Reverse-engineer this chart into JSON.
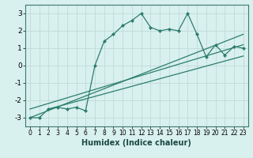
{
  "xlabel": "Humidex (Indice chaleur)",
  "ylabel": "",
  "bg_color": "#d8f0ee",
  "line_color": "#2d7d6e",
  "grid_color": "#c0dbd8",
  "xlim": [
    -0.5,
    23.5
  ],
  "ylim": [
    -3.5,
    3.5
  ],
  "xticks": [
    0,
    1,
    2,
    3,
    4,
    5,
    6,
    7,
    8,
    9,
    10,
    11,
    12,
    13,
    14,
    15,
    16,
    17,
    18,
    19,
    20,
    21,
    22,
    23
  ],
  "yticks": [
    -3,
    -2,
    -1,
    0,
    1,
    2,
    3
  ],
  "series1_x": [
    0,
    1,
    2,
    3,
    4,
    5,
    6,
    7,
    8,
    9,
    10,
    11,
    12,
    13,
    14,
    15,
    16,
    17,
    18,
    19,
    20,
    21,
    22,
    23
  ],
  "series1_y": [
    -3.0,
    -3.0,
    -2.5,
    -2.4,
    -2.5,
    -2.4,
    -2.6,
    0.0,
    1.4,
    1.8,
    2.3,
    2.6,
    3.0,
    2.2,
    2.0,
    2.1,
    2.0,
    3.0,
    1.8,
    0.5,
    1.2,
    0.6,
    1.1,
    1.0
  ],
  "series2_x": [
    0,
    23
  ],
  "series2_y": [
    -3.0,
    1.8
  ],
  "series3_x": [
    0,
    23
  ],
  "series3_y": [
    -2.5,
    1.2
  ],
  "series4_x": [
    2,
    23
  ],
  "series4_y": [
    -2.5,
    0.55
  ]
}
